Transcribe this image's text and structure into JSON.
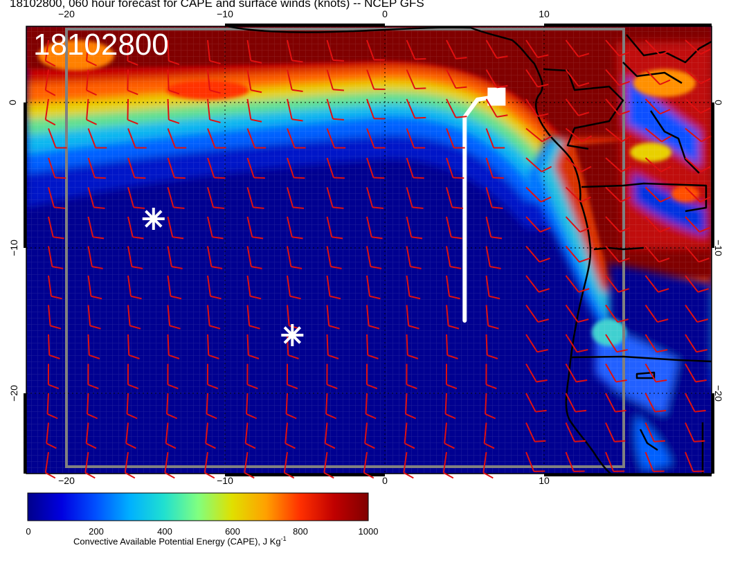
{
  "title": "18102800, 060 hour forecast for CAPE and surface winds (knots) -- NCEP GFS",
  "date_stamp": "18102800",
  "colors": {
    "barbs": "#e01010",
    "markers": "#ffffff",
    "track": "#ffffff",
    "coast": "#000000",
    "domain_box": "#808080",
    "cape_min": "#00008b",
    "cape_max": "#800000"
  },
  "map": {
    "lon_range": [
      -22.5,
      20.5
    ],
    "lat_range": [
      -25.5,
      4.8
    ],
    "lon_ticks_top": [
      "−20",
      "−10",
      "0",
      "10"
    ],
    "lon_ticks_bottom": [
      "−20",
      "−10",
      "0",
      "10"
    ],
    "lat_ticks_left": [
      "0",
      "−10",
      "−20"
    ],
    "lat_ticks_right": [
      "0",
      "−10",
      "−20"
    ],
    "field": "CAPE",
    "wind_barbs": "surface winds (knots)",
    "markers": [
      {
        "type": "asterisk",
        "lon": -14.5,
        "lat": -8
      },
      {
        "type": "asterisk",
        "lon": -5.8,
        "lat": -16
      }
    ],
    "track": {
      "lon": [
        5,
        5,
        5.8,
        7
      ],
      "lat": [
        -15,
        -1,
        0.2,
        0.4
      ]
    },
    "domain_box": {
      "lon": [
        -20,
        15
      ],
      "lat": [
        -25,
        5
      ]
    }
  },
  "colorbar": {
    "label": "Convective Available Potential Energy (CAPE), J Kg",
    "label_sup": "-1",
    "ticks": [
      "0",
      "200",
      "400",
      "600",
      "800",
      "1000"
    ],
    "range": [
      0,
      1000
    ],
    "colors": [
      "#00008b",
      "#0000e0",
      "#0050ff",
      "#00b0ff",
      "#20e0d0",
      "#80ff80",
      "#e0e000",
      "#ffa000",
      "#ff3000",
      "#c00000",
      "#800000"
    ]
  }
}
